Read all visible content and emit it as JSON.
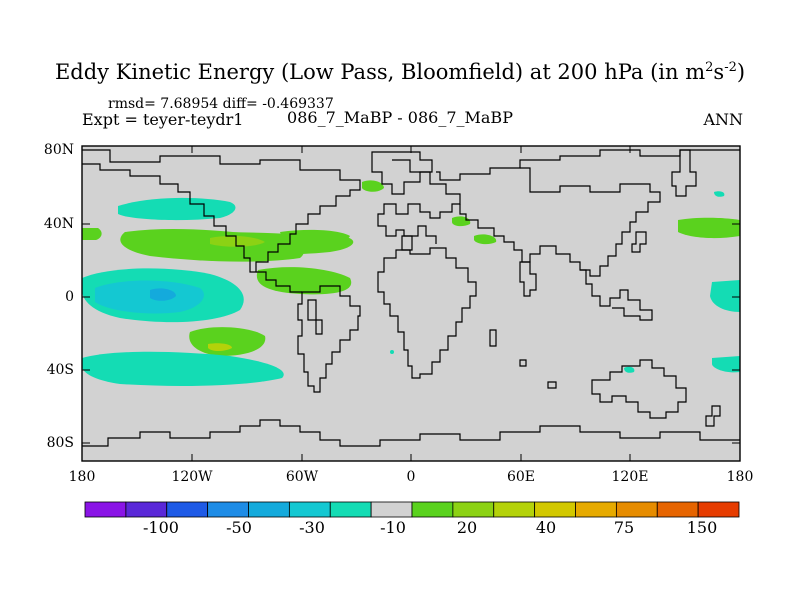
{
  "title": {
    "main": "Eddy Kinetic Energy (Low Pass, Bloomfield) at 200 hPa (in m",
    "sup1": "2",
    "mid": "s",
    "sup2": "-2",
    "end": ")"
  },
  "stats": "rmsd= 7.68954  diff= -0.469337",
  "expt": "Expt = teyer-teydr1",
  "center_label": "086_7_MaBP - 086_7_MaBP",
  "season": "ANN",
  "lat_labels": [
    "80N",
    "40N",
    "0",
    "40S",
    "80S"
  ],
  "lon_labels": [
    "180",
    "120W",
    "60W",
    "0",
    "60E",
    "120E",
    "180"
  ],
  "colorbar": {
    "colors": [
      "#8a14e6",
      "#5a28d8",
      "#1e5ae6",
      "#1e8ce6",
      "#14aadc",
      "#14c8d2",
      "#14dcb4",
      "#d2d2d2",
      "#5ad21e",
      "#8cd214",
      "#b4d20a",
      "#d2c800",
      "#e6aa00",
      "#e68c00",
      "#e66400",
      "#e63c00"
    ],
    "labels": [
      "-100",
      "-50",
      "-30",
      "-10",
      "20",
      "40",
      "75",
      "150"
    ]
  },
  "map_colors": {
    "land_background": "#d2d2d2",
    "coast": "#000000"
  }
}
